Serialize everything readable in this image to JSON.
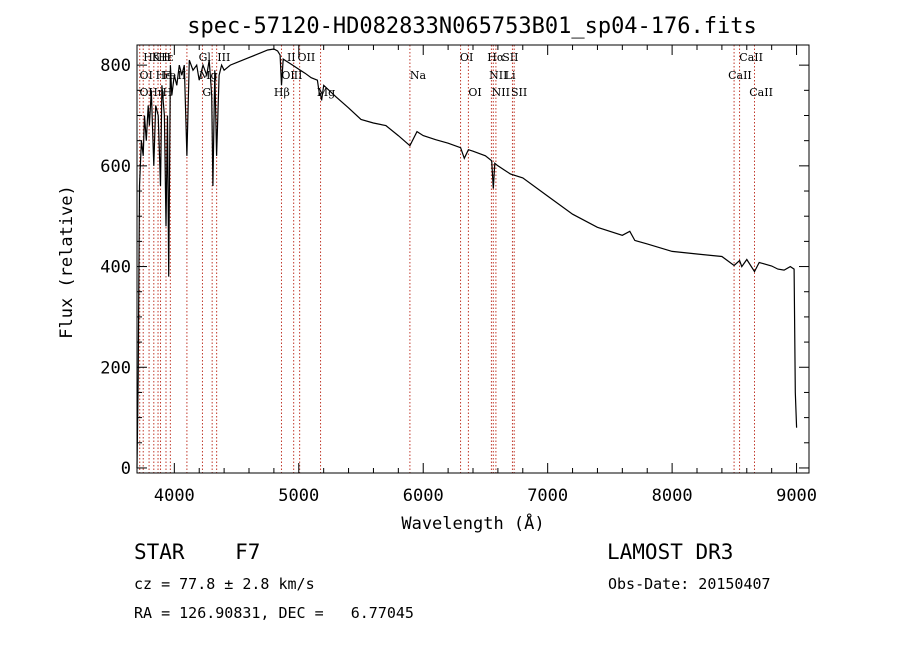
{
  "chart_data": {
    "type": "line",
    "title": "spec-57120-HD082833N065753B01_sp04-176.fits",
    "xlabel": "Wavelength (Å)",
    "ylabel": "Flux (relative)",
    "xlim": [
      3700,
      9100
    ],
    "ylim": [
      -10,
      840
    ],
    "xticks": [
      4000,
      5000,
      6000,
      7000,
      8000,
      9000
    ],
    "yticks": [
      0,
      200,
      400,
      600,
      800
    ],
    "spectrum": {
      "name": "flux",
      "x": [
        3700,
        3710,
        3720,
        3735,
        3750,
        3760,
        3775,
        3790,
        3800,
        3815,
        3835,
        3850,
        3870,
        3889,
        3900,
        3920,
        3933,
        3945,
        3955,
        3968,
        3980,
        4000,
        4020,
        4040,
        4060,
        4080,
        4101,
        4120,
        4150,
        4180,
        4200,
        4230,
        4260,
        4280,
        4300,
        4310,
        4325,
        4340,
        4360,
        4380,
        4400,
        4450,
        4500,
        4550,
        4600,
        4650,
        4700,
        4750,
        4800,
        4830,
        4850,
        4861,
        4875,
        4900,
        4950,
        5000,
        5050,
        5100,
        5150,
        5167,
        5172,
        5183,
        5200,
        5300,
        5400,
        5500,
        5600,
        5700,
        5800,
        5893,
        5950,
        6000,
        6100,
        6200,
        6300,
        6330,
        6363,
        6400,
        6500,
        6550,
        6563,
        6575,
        6600,
        6650,
        6700,
        6800,
        7000,
        7200,
        7400,
        7600,
        7660,
        7700,
        7800,
        8000,
        8200,
        8400,
        8498,
        8542,
        8560,
        8600,
        8662,
        8700,
        8800,
        8850,
        8900,
        8950,
        8980,
        8990,
        9000
      ],
      "values": [
        0,
        180,
        560,
        650,
        620,
        700,
        650,
        720,
        680,
        750,
        600,
        720,
        700,
        560,
        760,
        700,
        480,
        700,
        380,
        800,
        740,
        780,
        760,
        800,
        780,
        800,
        620,
        810,
        790,
        800,
        770,
        800,
        780,
        810,
        740,
        560,
        790,
        620,
        780,
        800,
        790,
        800,
        805,
        810,
        815,
        820,
        825,
        830,
        832,
        828,
        820,
        760,
        812,
        808,
        800,
        792,
        784,
        775,
        770,
        740,
        745,
        730,
        760,
        737,
        715,
        692,
        685,
        680,
        660,
        640,
        668,
        660,
        652,
        645,
        636,
        615,
        632,
        629,
        620,
        610,
        555,
        605,
        600,
        592,
        584,
        576,
        540,
        504,
        478,
        462,
        470,
        452,
        445,
        430,
        425,
        420,
        402,
        412,
        400,
        414,
        390,
        408,
        401,
        395,
        393,
        400,
        395,
        150,
        80
      ]
    },
    "line_markers": [
      {
        "label": "Hδ",
        "x": 3750,
        "row": 1
      },
      {
        "label": "K",
        "x": 3820,
        "row": 1
      },
      {
        "label": "Hε",
        "x": 3870,
        "row": 1
      },
      {
        "label": "H",
        "x": 3895,
        "row": 1
      },
      {
        "label": "Gl",
        "x": 4195,
        "row": 1
      },
      {
        "label": "III",
        "x": 4345,
        "row": 1
      },
      {
        "label": "II",
        "x": 4905,
        "row": 1
      },
      {
        "label": "OII",
        "x": 4990,
        "row": 1
      },
      {
        "label": "OI",
        "x": 6295,
        "row": 1
      },
      {
        "label": "Hα",
        "x": 6515,
        "row": 1
      },
      {
        "label": "SII",
        "x": 6635,
        "row": 1
      },
      {
        "label": "CaII",
        "x": 8540,
        "row": 1
      },
      {
        "label": "OI",
        "x": 3720,
        "row": 2
      },
      {
        "label": "He",
        "x": 3850,
        "row": 2
      },
      {
        "label": "Fe",
        "x": 3905,
        "row": 2
      },
      {
        "label": "II",
        "x": 4025,
        "row": 2
      },
      {
        "label": "Mg",
        "x": 4200,
        "row": 2
      },
      {
        "label": "OI",
        "x": 4860,
        "row": 2
      },
      {
        "label": "II",
        "x": 4960,
        "row": 2
      },
      {
        "label": "Na",
        "x": 5893,
        "row": 2
      },
      {
        "label": "NII",
        "x": 6530,
        "row": 2
      },
      {
        "label": "Li",
        "x": 6655,
        "row": 2
      },
      {
        "label": "CaII",
        "x": 8450,
        "row": 2
      },
      {
        "label": "OI",
        "x": 3720,
        "row": 3
      },
      {
        "label": "Hη",
        "x": 3790,
        "row": 3
      },
      {
        "label": "H",
        "x": 3905,
        "row": 3
      },
      {
        "label": "G",
        "x": 4225,
        "row": 3
      },
      {
        "label": "Hβ",
        "x": 4800,
        "row": 3
      },
      {
        "label": "Mg",
        "x": 5145,
        "row": 3
      },
      {
        "label": "OI",
        "x": 6363,
        "row": 3
      },
      {
        "label": "NII",
        "x": 6550,
        "row": 3
      },
      {
        "label": "SII",
        "x": 6705,
        "row": 3
      },
      {
        "label": "CaII",
        "x": 8620,
        "row": 3
      }
    ],
    "marker_lines_x": [
      3722,
      3750,
      3797,
      3835,
      3869,
      3889,
      3933,
      3968,
      4101,
      4226,
      4304,
      4340,
      4861,
      4959,
      5007,
      5175,
      5893,
      6300,
      6363,
      6548,
      6563,
      6584,
      6717,
      6731,
      8498,
      8542,
      8662
    ],
    "colors": {
      "spectrum": "#000000",
      "marker_lines": "#c0392b",
      "axes": "#000000"
    }
  },
  "footer": {
    "object": "STAR    F7",
    "survey": "LAMOST DR3",
    "redshift": "cz = 77.8 ± 2.8 km/s",
    "obs_date": "Obs-Date: 20150407",
    "coords": "RA = 126.90831, DEC =   6.77045"
  }
}
